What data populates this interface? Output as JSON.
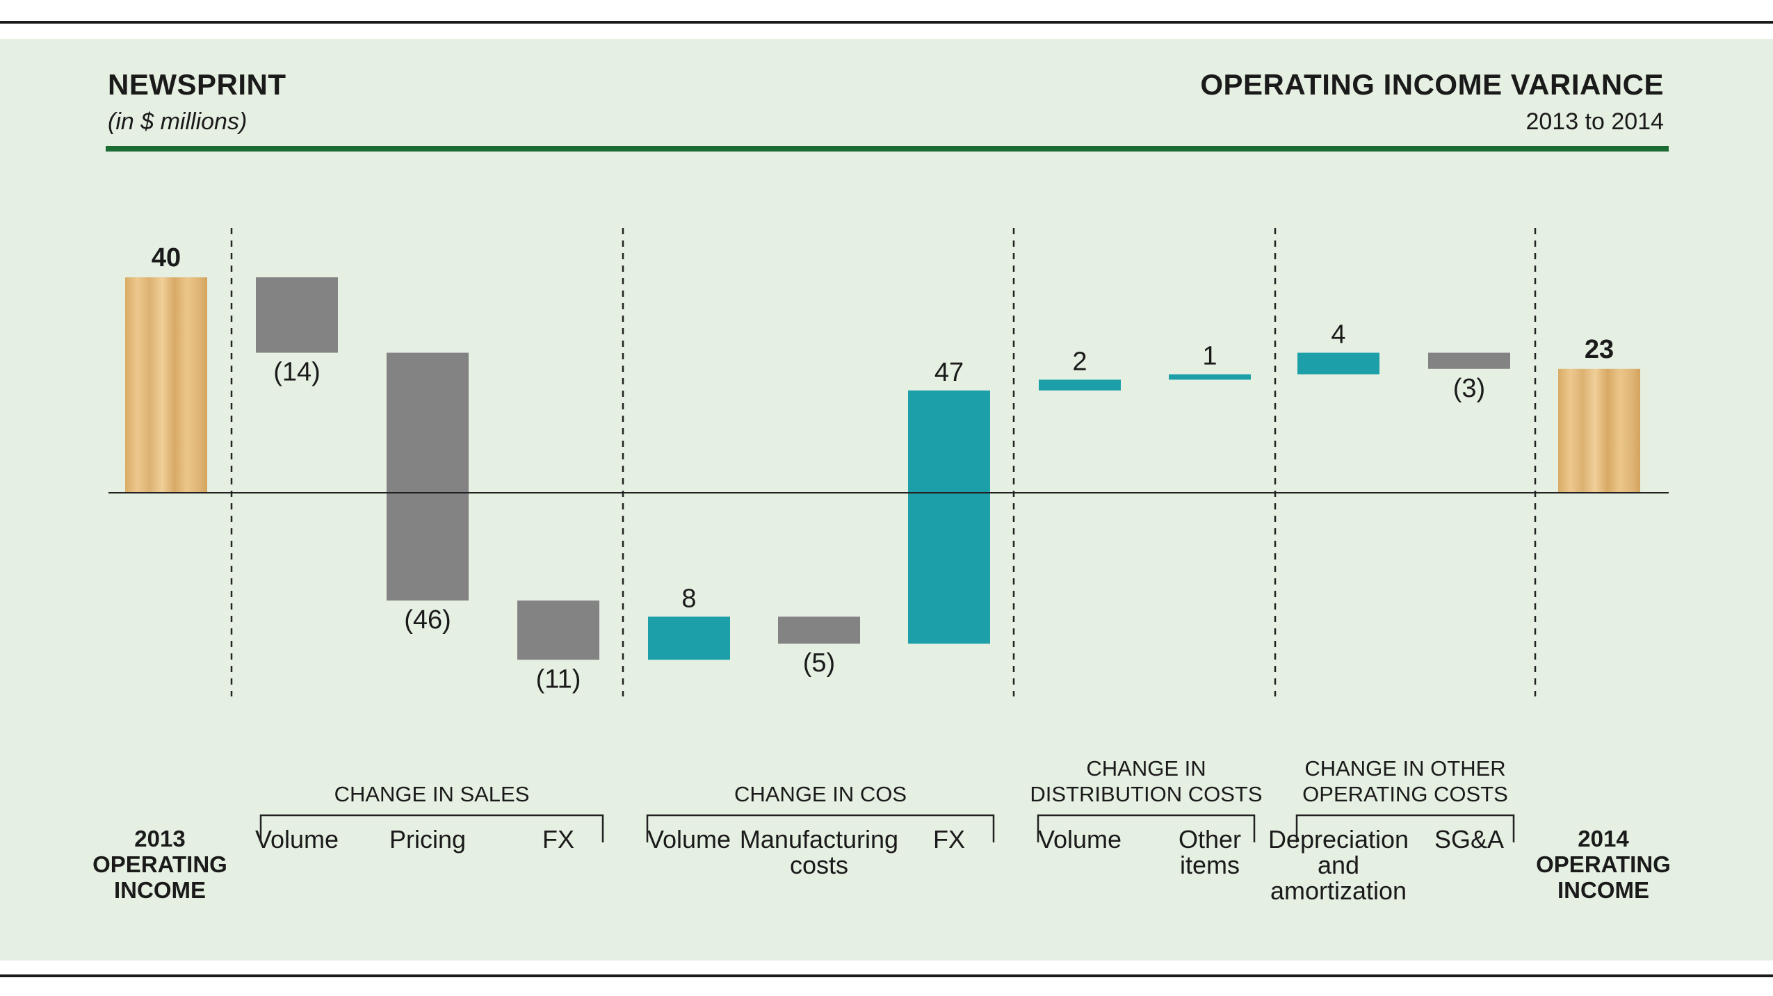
{
  "header": {
    "left_title": "NEWSPRINT",
    "left_subtitle": "(in $ millions)",
    "right_title": "OPERATING INCOME VARIANCE",
    "right_subtitle": "2013 to 2014"
  },
  "colors": {
    "background": "#e5efe2",
    "rule_green": "#1b6b35",
    "negative": "#838383",
    "positive": "#1c9fa8",
    "total_wood": "#e2bc7f"
  },
  "chart_data": {
    "type": "bar",
    "subtype": "waterfall",
    "unit": "$ millions",
    "start": {
      "label": "2013 OPERATING INCOME",
      "value": 40,
      "value_label": "40"
    },
    "end": {
      "label": "2014 OPERATING INCOME",
      "value": 23,
      "value_label": "23"
    },
    "steps": [
      {
        "group": "CHANGE IN SALES",
        "category": "Volume",
        "value": -14,
        "value_label": "(14)"
      },
      {
        "group": "CHANGE IN SALES",
        "category": "Pricing",
        "value": -46,
        "value_label": "(46)"
      },
      {
        "group": "CHANGE IN SALES",
        "category": "FX",
        "value": -11,
        "value_label": "(11)"
      },
      {
        "group": "CHANGE IN COS",
        "category": "Volume",
        "value": 8,
        "value_label": "8"
      },
      {
        "group": "CHANGE IN COS",
        "category": "Manufacturing costs",
        "value": -5,
        "value_label": "(5)"
      },
      {
        "group": "CHANGE IN COS",
        "category": "FX",
        "value": 47,
        "value_label": "47"
      },
      {
        "group": "CHANGE IN DISTRIBUTION COSTS",
        "category": "Volume",
        "value": 2,
        "value_label": "2"
      },
      {
        "group": "CHANGE IN DISTRIBUTION COSTS",
        "category": "Other items",
        "value": 1,
        "value_label": "1"
      },
      {
        "group": "CHANGE IN OTHER OPERATING COSTS",
        "category": "Depreciation and amortization",
        "value": 4,
        "value_label": "4"
      },
      {
        "group": "CHANGE IN OTHER OPERATING COSTS",
        "category": "SG&A",
        "value": -3,
        "value_label": "(3)"
      }
    ],
    "groups": [
      {
        "label_lines": [
          "CHANGE IN SALES"
        ]
      },
      {
        "label_lines": [
          "CHANGE IN COS"
        ]
      },
      {
        "label_lines": [
          "CHANGE IN",
          "DISTRIBUTION COSTS"
        ]
      },
      {
        "label_lines": [
          "CHANGE IN OTHER",
          "OPERATING COSTS"
        ]
      }
    ],
    "category_label_lines": [
      [
        "Volume"
      ],
      [
        "Pricing"
      ],
      [
        "FX"
      ],
      [
        "Volume"
      ],
      [
        "Manufacturing",
        "costs"
      ],
      [
        "FX"
      ],
      [
        "Volume"
      ],
      [
        "Other",
        "items"
      ],
      [
        "Depreciation",
        "and",
        "amortization"
      ],
      [
        "SG&A"
      ]
    ],
    "start_label_lines": [
      "2013",
      "OPERATING",
      "INCOME"
    ],
    "end_label_lines": [
      "2014",
      "OPERATING",
      "INCOME"
    ],
    "grid": false,
    "legend": "none"
  }
}
